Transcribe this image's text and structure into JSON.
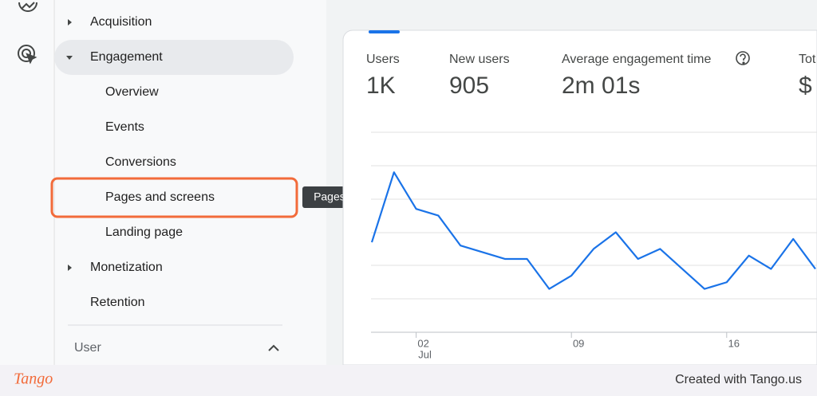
{
  "nav_items": [
    "Acquisition",
    "Engagement",
    "Overview",
    "Events",
    "Conversions",
    "Pages and screens",
    "Landing page",
    "Monetization",
    "Retention"
  ],
  "nav_section": "User",
  "tooltip": "Pages and screens",
  "metrics": [
    {
      "label": "Users",
      "value": "1K"
    },
    {
      "label": "New users",
      "value": "905"
    },
    {
      "label": "Average engagement time",
      "value": "2m 01s"
    },
    {
      "label": "Tot",
      "value": "$"
    }
  ],
  "chart_data": {
    "type": "line",
    "categories": [
      null,
      null,
      "02",
      null,
      null,
      null,
      null,
      null,
      null,
      "09",
      null,
      null,
      null,
      null,
      null,
      null,
      "16",
      null,
      null,
      null,
      null
    ],
    "x_sublabel": "Jul",
    "color": "#1a73e8",
    "values": [
      2.7,
      4.8,
      3.7,
      3.5,
      2.6,
      2.4,
      2.2,
      2.2,
      1.3,
      1.7,
      2.5,
      3.0,
      2.2,
      2.5,
      1.9,
      1.3,
      1.5,
      2.3,
      1.9,
      2.8,
      1.9
    ],
    "ylim": [
      0,
      6
    ],
    "grid": true
  },
  "footer": {
    "brand": "Tango",
    "credit": "Created with Tango.us"
  }
}
